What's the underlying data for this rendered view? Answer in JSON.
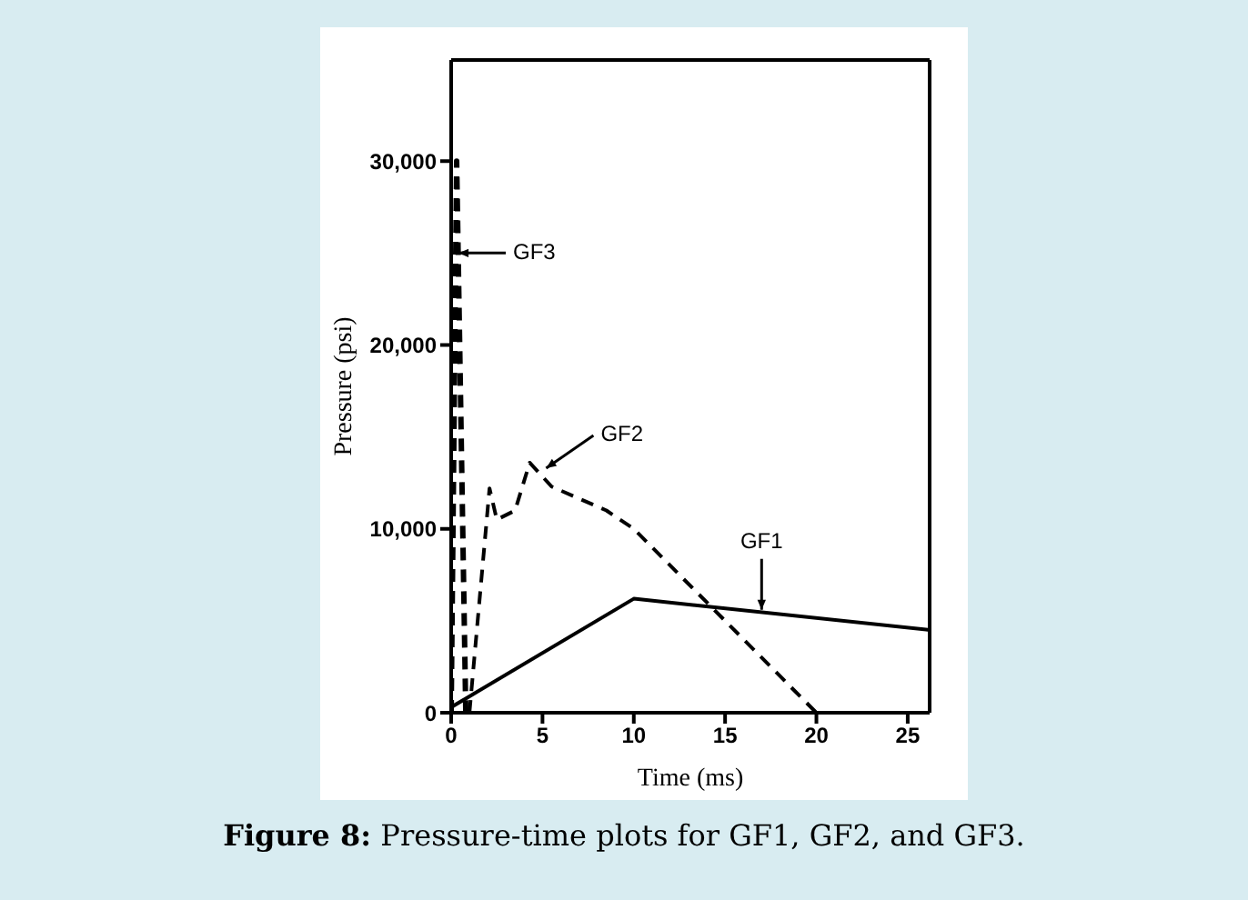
{
  "chart_data": {
    "type": "line",
    "xlabel": "Time (ms)",
    "ylabel": "Pressure (psi)",
    "xlim": [
      0,
      26.2
    ],
    "xticks": [
      0,
      5,
      10,
      15,
      20,
      25
    ],
    "ylim": [
      0,
      35500
    ],
    "yticks": [
      {
        "value": 0,
        "label": "0"
      },
      {
        "value": 10000,
        "label": "10,000"
      },
      {
        "value": 20000,
        "label": "20,000"
      },
      {
        "value": 30000,
        "label": "30,000"
      }
    ],
    "marker": "none",
    "series": [
      {
        "color": "#000000",
        "line_style": "solid",
        "x": [
          0,
          10,
          26.2
        ],
        "values": [
          300,
          6200,
          4500
        ]
      },
      {
        "color": "#000000",
        "line_style": "dashed",
        "x": [
          1.0,
          2.1,
          2.5,
          3.5,
          4.3,
          5.5,
          8.5,
          10,
          15,
          20
        ],
        "values": [
          0,
          12200,
          10500,
          11000,
          13600,
          12300,
          11000,
          10000,
          5000,
          0
        ]
      },
      {
        "color": "#000000",
        "line_style": "dashed",
        "x": [
          0,
          0.3,
          0.8
        ],
        "values": [
          0,
          30000,
          0
        ]
      }
    ],
    "annotations": [
      {
        "text": "GF1",
        "x": 17,
        "y": 5600
      },
      {
        "text": "GF2",
        "x": 5.2,
        "y": 13300
      },
      {
        "text": "GF3",
        "x": 0.4,
        "y": 25000
      },
      "Figure 8: Pressure-time plots for GF1, GF2, and GF3."
    ]
  }
}
